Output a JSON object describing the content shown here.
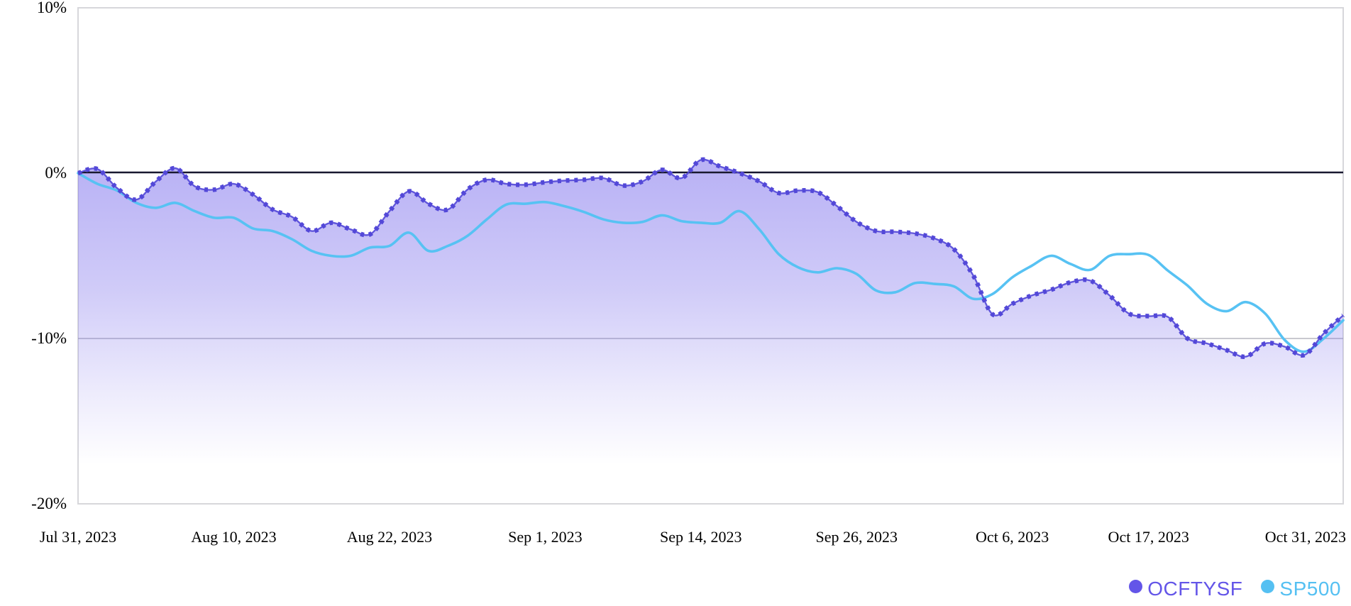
{
  "chart_data": {
    "type": "area",
    "title": "",
    "xlabel": "",
    "ylabel": "",
    "y_unit": "%",
    "ylim": [
      -20,
      10
    ],
    "y_tick_labels": [
      "10%",
      "0%",
      "-10%",
      "-20%"
    ],
    "y_tick_values": [
      10,
      0,
      -10,
      -20
    ],
    "grid": "horizontal-minus10-and-zero-baseline",
    "x_tick_labels": [
      "Jul 31, 2023",
      "Aug 10, 2023",
      "Aug 22, 2023",
      "Sep 1, 2023",
      "Sep 14, 2023",
      "Sep 26, 2023",
      "Oct 6, 2023",
      "Oct 17, 2023",
      "Oct 31, 2023"
    ],
    "x_tick_day_indices": [
      0,
      8,
      16,
      24,
      32,
      40,
      48,
      55,
      65
    ],
    "dates": [
      "Jul 31",
      "Aug 1",
      "Aug 2",
      "Aug 3",
      "Aug 4",
      "Aug 7",
      "Aug 8",
      "Aug 9",
      "Aug 10",
      "Aug 11",
      "Aug 14",
      "Aug 15",
      "Aug 16",
      "Aug 17",
      "Aug 18",
      "Aug 21",
      "Aug 22",
      "Aug 23",
      "Aug 24",
      "Aug 25",
      "Aug 28",
      "Aug 29",
      "Aug 30",
      "Aug 31",
      "Sep 1",
      "Sep 5",
      "Sep 6",
      "Sep 7",
      "Sep 8",
      "Sep 11",
      "Sep 12",
      "Sep 13",
      "Sep 14",
      "Sep 15",
      "Sep 18",
      "Sep 19",
      "Sep 20",
      "Sep 21",
      "Sep 22",
      "Sep 25",
      "Sep 26",
      "Sep 27",
      "Sep 28",
      "Sep 29",
      "Oct 2",
      "Oct 3",
      "Oct 4",
      "Oct 5",
      "Oct 6",
      "Oct 9",
      "Oct 10",
      "Oct 11",
      "Oct 12",
      "Oct 13",
      "Oct 16",
      "Oct 17",
      "Oct 18",
      "Oct 19",
      "Oct 20",
      "Oct 23",
      "Oct 24",
      "Oct 25",
      "Oct 26",
      "Oct 27",
      "Oct 30",
      "Oct 31"
    ],
    "series": [
      {
        "name": "OCFTYSF",
        "style": "dotted-line-with-gradient-area",
        "color": "#5348d8",
        "fill_top_color": "rgba(117,103,235,0.50)",
        "fill_bottom_color": "rgba(117,103,235,0)",
        "values": [
          0,
          0.25,
          -0.9,
          -1.6,
          -0.5,
          0.3,
          -0.8,
          -1.0,
          -0.65,
          -1.3,
          -2.2,
          -2.65,
          -3.5,
          -3.0,
          -3.4,
          -3.7,
          -2.3,
          -1.1,
          -1.85,
          -2.2,
          -1.0,
          -0.4,
          -0.65,
          -0.7,
          -0.55,
          -0.45,
          -0.4,
          -0.3,
          -0.75,
          -0.5,
          0.2,
          -0.3,
          0.8,
          0.4,
          0.0,
          -0.5,
          -1.2,
          -1.05,
          -1.15,
          -2.0,
          -2.95,
          -3.5,
          -3.55,
          -3.65,
          -3.95,
          -4.6,
          -6.2,
          -8.55,
          -7.9,
          -7.4,
          -7.05,
          -6.6,
          -6.5,
          -7.4,
          -8.5,
          -8.65,
          -8.7,
          -10.0,
          -10.3,
          -10.7,
          -11.1,
          -10.3,
          -10.5,
          -11.0,
          -9.7,
          -8.6
        ]
      },
      {
        "name": "SP500",
        "style": "solid-smooth-line",
        "color": "#57c2f3",
        "values": [
          0,
          -0.65,
          -1.05,
          -1.8,
          -2.1,
          -1.8,
          -2.3,
          -2.7,
          -2.7,
          -3.35,
          -3.5,
          -4.0,
          -4.7,
          -5.0,
          -5.0,
          -4.5,
          -4.4,
          -3.6,
          -4.7,
          -4.4,
          -3.8,
          -2.8,
          -1.9,
          -1.85,
          -1.75,
          -2.0,
          -2.35,
          -2.8,
          -3.0,
          -2.95,
          -2.55,
          -2.9,
          -3.0,
          -3.0,
          -2.3,
          -3.4,
          -4.9,
          -5.7,
          -6.0,
          -5.75,
          -6.1,
          -7.1,
          -7.2,
          -6.65,
          -6.7,
          -6.85,
          -7.6,
          -7.3,
          -6.3,
          -5.6,
          -5.0,
          -5.5,
          -5.85,
          -5.0,
          -4.9,
          -4.95,
          -5.9,
          -6.8,
          -7.9,
          -8.35,
          -7.8,
          -8.5,
          -10.1,
          -10.8,
          -10.0,
          -8.9
        ]
      }
    ],
    "legend": {
      "position": "bottom-right",
      "items": [
        {
          "label": "OCFTYSF",
          "color": "#6355e8"
        },
        {
          "label": "SP500",
          "color": "#55c0f2"
        }
      ]
    },
    "baseline_color": "#191930",
    "gridline_color": "#a9a9b2",
    "border_color": "#d7d7db"
  }
}
